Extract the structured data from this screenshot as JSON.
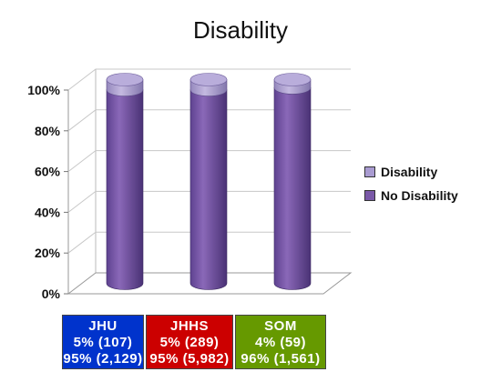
{
  "chart_data": {
    "type": "bar",
    "title": "Disability",
    "categories": [
      "JHU",
      "JHHS",
      "SOM"
    ],
    "series": [
      {
        "name": "Disability",
        "values": [
          5,
          5,
          4
        ],
        "color": "#a99bd1"
      },
      {
        "name": "No Disability",
        "values": [
          95,
          95,
          96
        ],
        "color": "#7a59a8"
      }
    ],
    "ylim": [
      0,
      100
    ],
    "yticks": [
      "0%",
      "20%",
      "40%",
      "60%",
      "80%",
      "100%"
    ],
    "grid": true,
    "stacked": true,
    "legend_position": "right"
  },
  "boxes": [
    {
      "label": "JHU",
      "line1": "5% (107)",
      "line2": "95% (2,129)",
      "color": "#0033cc"
    },
    {
      "label": "JHHS",
      "line1": "5% (289)",
      "line2": "95% (5,982)",
      "color": "#cc0000"
    },
    {
      "label": "SOM",
      "line1": "4% (59)",
      "line2": "96% (1,561)",
      "color": "#669900"
    }
  ]
}
